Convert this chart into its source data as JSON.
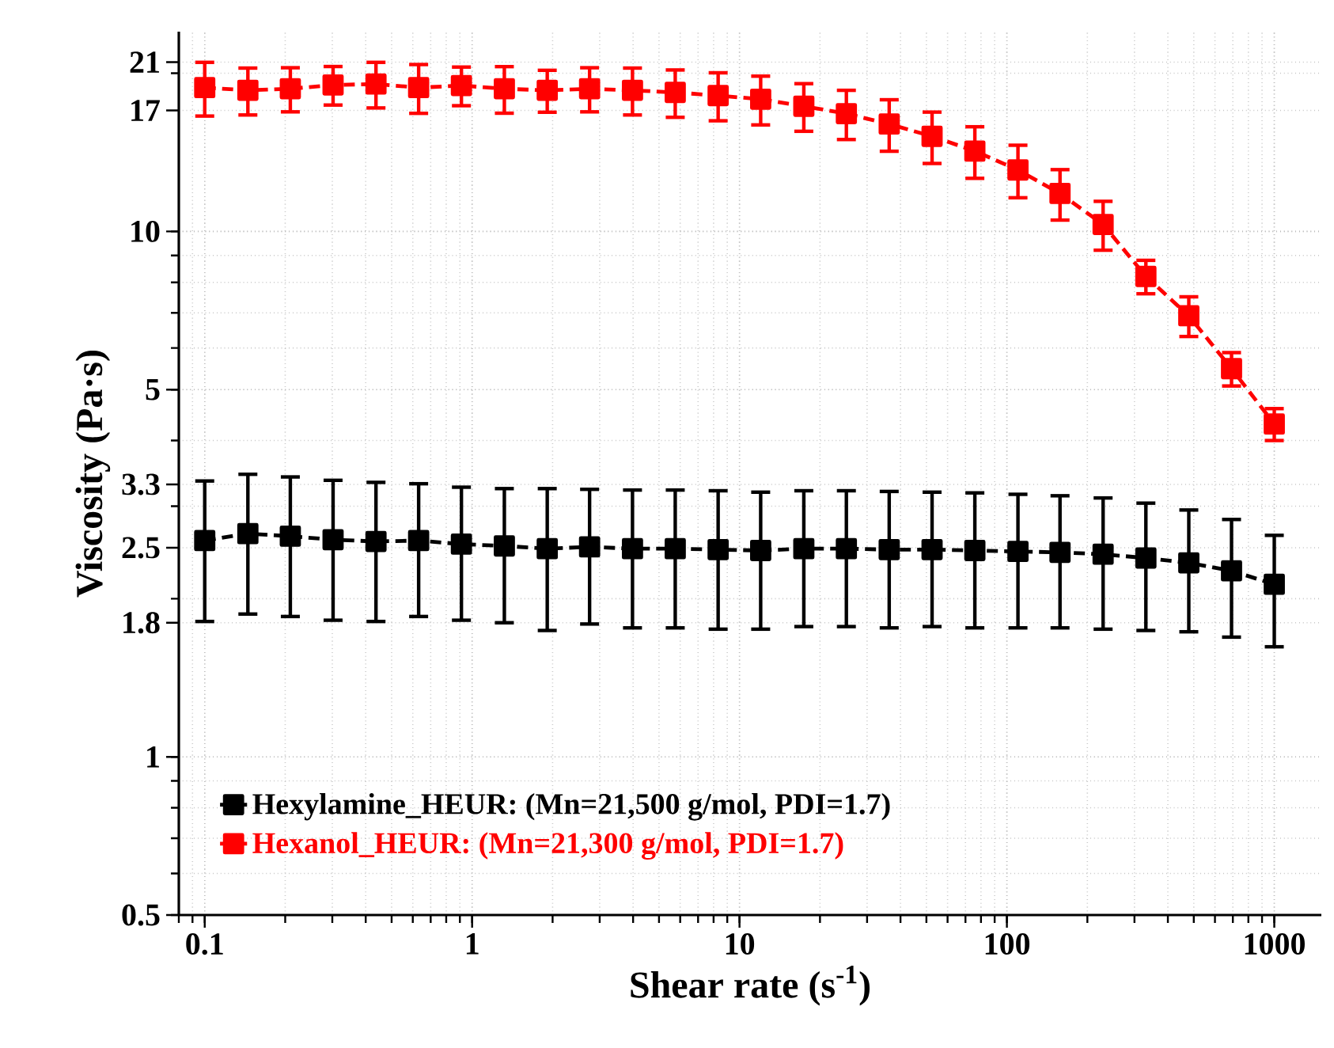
{
  "chart_data": {
    "type": "line",
    "xlabel": "Shear rate (s$^{-1}$)",
    "ylabel": "Viscosity (Pa·s)",
    "log": "xy",
    "grid": true,
    "legend": "bottom left",
    "marker": "square",
    "line_style": "dashed",
    "xlim": [
      0.08,
      1500
    ],
    "ylim": [
      0.5,
      24
    ],
    "xticks": [
      0.1,
      1,
      10,
      100,
      1000
    ],
    "yticks": [
      0.5,
      1,
      1.8,
      2.5,
      3.3,
      5,
      10,
      17,
      21
    ],
    "x": [
      0.1,
      0.145,
      0.209,
      0.302,
      0.437,
      0.631,
      0.912,
      1.32,
      1.91,
      2.75,
      3.98,
      5.75,
      8.32,
      12.0,
      17.4,
      25.1,
      36.3,
      52.5,
      75.9,
      110,
      158,
      229,
      331,
      479,
      692,
      1000
    ],
    "series": [
      {
        "name": "Hexylamine_HEUR: (Mn=21,500 g/mol, PDI=1.7)",
        "color": "#000000",
        "values": [
          2.58,
          2.66,
          2.63,
          2.59,
          2.57,
          2.58,
          2.54,
          2.52,
          2.49,
          2.51,
          2.49,
          2.49,
          2.48,
          2.47,
          2.49,
          2.49,
          2.48,
          2.48,
          2.47,
          2.46,
          2.45,
          2.43,
          2.39,
          2.34,
          2.26,
          2.13
        ],
        "errors": [
          0.77,
          0.79,
          0.78,
          0.77,
          0.76,
          0.73,
          0.72,
          0.72,
          0.75,
          0.72,
          0.73,
          0.73,
          0.73,
          0.72,
          0.72,
          0.72,
          0.72,
          0.71,
          0.71,
          0.7,
          0.69,
          0.68,
          0.65,
          0.61,
          0.57,
          0.51
        ]
      },
      {
        "name": "Hexanol_HEUR: (Mn=21,300 g/mol, PDI=1.7)",
        "color": "#ff0000",
        "values": [
          18.78,
          18.56,
          18.69,
          19.0,
          19.08,
          18.78,
          18.95,
          18.69,
          18.56,
          18.69,
          18.56,
          18.39,
          18.14,
          17.85,
          17.31,
          16.76,
          16.01,
          15.17,
          14.22,
          13.09,
          11.81,
          10.31,
          8.21,
          6.91,
          5.48,
          4.3
        ],
        "errors": [
          2.2,
          1.9,
          1.8,
          1.6,
          1.9,
          2.0,
          1.6,
          1.9,
          1.7,
          1.8,
          1.9,
          1.9,
          1.9,
          1.9,
          1.8,
          1.8,
          1.8,
          1.7,
          1.6,
          1.5,
          1.3,
          1.1,
          0.6,
          0.6,
          0.4,
          0.3
        ]
      }
    ]
  }
}
